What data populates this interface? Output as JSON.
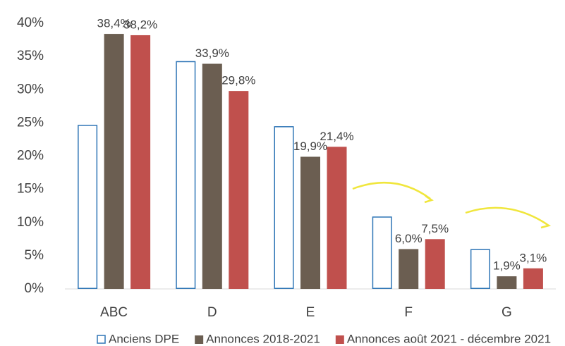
{
  "chart_data": {
    "type": "bar",
    "categories": [
      "ABC",
      "D",
      "E",
      "F",
      "G"
    ],
    "series": [
      {
        "name": "Anciens DPE",
        "color": "#2e75b6",
        "outline": true,
        "values": [
          24.7,
          34.3,
          24.5,
          10.9,
          6.0
        ]
      },
      {
        "name": "Annonces 2018-2021",
        "color": "#6b5e51",
        "values": [
          38.4,
          33.9,
          19.9,
          6.0,
          1.9
        ],
        "value_labels": [
          "38,4%",
          "33,9%",
          "19,9%",
          "6,0%",
          "1,9%"
        ]
      },
      {
        "name": "Annonces août 2021 - décembre 2021",
        "color": "#c0504d",
        "values": [
          38.2,
          29.8,
          21.4,
          7.5,
          3.1
        ],
        "value_labels": [
          "38,2%",
          "29,8%",
          "21,4%",
          "7,5%",
          "3,1%"
        ]
      }
    ],
    "ylim": [
      0,
      40
    ],
    "yticks": [
      {
        "value": 0,
        "label": "0%"
      },
      {
        "value": 5,
        "label": "5%"
      },
      {
        "value": 10,
        "label": "10%"
      },
      {
        "value": 15,
        "label": "15%"
      },
      {
        "value": 20,
        "label": "20%"
      },
      {
        "value": 25,
        "label": "25%"
      },
      {
        "value": 30,
        "label": "30%"
      },
      {
        "value": 35,
        "label": "35%"
      },
      {
        "value": 40,
        "label": "40%"
      }
    ],
    "grid": false,
    "legend": "bottom"
  }
}
